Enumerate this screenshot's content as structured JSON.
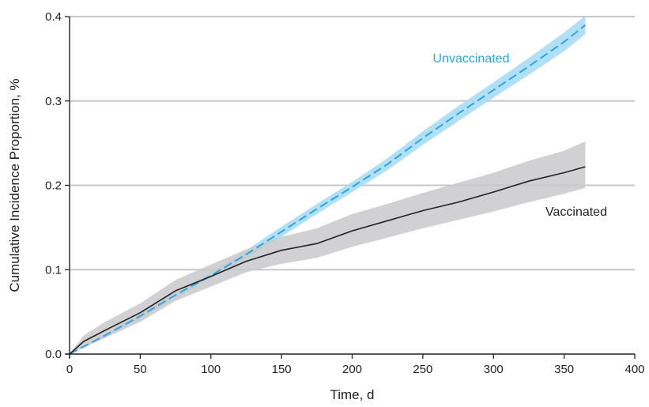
{
  "chart_data": {
    "type": "line",
    "xlabel": "Time, d",
    "ylabel": "Cumulative Incidence Proportion, %",
    "xlim": [
      0,
      400
    ],
    "ylim": [
      0,
      0.4
    ],
    "xticks": [
      0,
      50,
      100,
      150,
      200,
      250,
      300,
      350,
      400
    ],
    "yticks": [
      0.0,
      0.1,
      0.2,
      0.3,
      0.4
    ],
    "xtick_labels": [
      "0",
      "50",
      "100",
      "150",
      "200",
      "250",
      "300",
      "350",
      "400"
    ],
    "ytick_labels": [
      "0.0",
      "0.1",
      "0.2",
      "0.3",
      "0.4"
    ],
    "grid": "horizontal",
    "series": [
      {
        "name": "Unvaccinated",
        "color": "#2aa7df",
        "band_color": "#a9dcf5",
        "line_style": "dashed",
        "label_position": "upper-right",
        "x": [
          0,
          25,
          50,
          75,
          100,
          125,
          150,
          175,
          200,
          225,
          250,
          275,
          300,
          325,
          350,
          365
        ],
        "y": [
          0,
          0.022,
          0.045,
          0.07,
          0.093,
          0.118,
          0.145,
          0.172,
          0.198,
          0.225,
          0.256,
          0.285,
          0.313,
          0.341,
          0.37,
          0.39
        ],
        "lower": [
          0,
          0.02,
          0.042,
          0.066,
          0.089,
          0.113,
          0.139,
          0.166,
          0.192,
          0.218,
          0.248,
          0.276,
          0.304,
          0.331,
          0.359,
          0.379
        ],
        "upper": [
          0,
          0.024,
          0.048,
          0.074,
          0.097,
          0.123,
          0.151,
          0.178,
          0.204,
          0.232,
          0.264,
          0.294,
          0.322,
          0.351,
          0.381,
          0.401
        ]
      },
      {
        "name": "Vaccinated",
        "color": "#222222",
        "band_color": "#c9c9cb",
        "line_style": "solid",
        "label_position": "right",
        "x": [
          0,
          10,
          25,
          50,
          75,
          100,
          125,
          150,
          175,
          200,
          225,
          250,
          275,
          300,
          325,
          350,
          365
        ],
        "y": [
          0,
          0.015,
          0.028,
          0.049,
          0.075,
          0.092,
          0.11,
          0.123,
          0.131,
          0.146,
          0.158,
          0.17,
          0.18,
          0.192,
          0.205,
          0.215,
          0.222
        ],
        "lower": [
          0,
          0.008,
          0.019,
          0.038,
          0.063,
          0.08,
          0.097,
          0.107,
          0.114,
          0.127,
          0.138,
          0.149,
          0.159,
          0.169,
          0.18,
          0.19,
          0.197
        ],
        "upper": [
          0,
          0.022,
          0.038,
          0.06,
          0.088,
          0.106,
          0.124,
          0.139,
          0.149,
          0.166,
          0.178,
          0.191,
          0.203,
          0.215,
          0.229,
          0.241,
          0.252
        ]
      }
    ]
  }
}
